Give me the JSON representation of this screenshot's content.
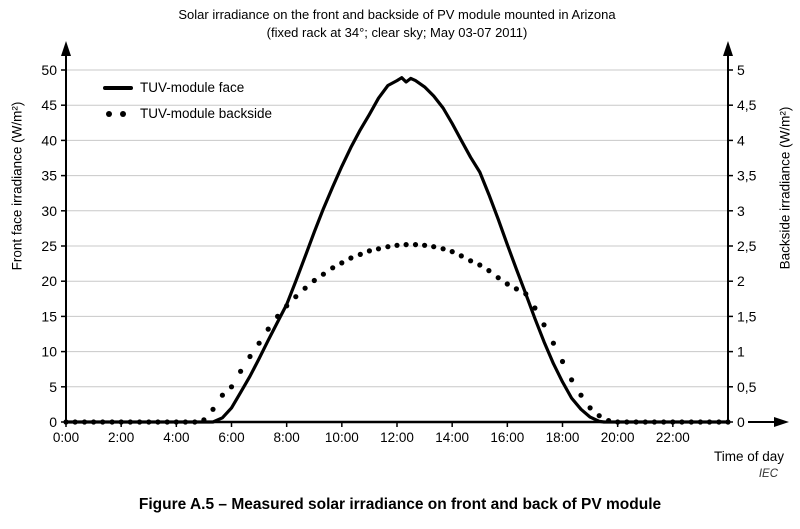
{
  "title": "Solar irradiance on the front and backside of PV module mounted in Arizona",
  "subtitle": "(fixed rack at 34°; clear sky; May 03-07 2011)",
  "caption": "Figure A.5 – Measured solar irradiance on front and back of PV module",
  "source_label": "IEC",
  "chart_data": {
    "type": "line",
    "title": "Solar irradiance on the front and backside of PV module mounted in Arizona",
    "subtitle": "(fixed rack at 34°; clear sky; May 03-07 2011)",
    "xlabel": "Time of day",
    "ylabel_left": "Front face irradiance (W/m²)",
    "ylabel_right": "Backside irradiance (W/m²)",
    "xlim": [
      0,
      24
    ],
    "ylim_left": [
      0,
      50
    ],
    "ylim_right": [
      0,
      5
    ],
    "grid": "horizontal",
    "legend_position": "top-left-inside",
    "colors": {
      "line": "#000000",
      "grid": "#c8c8c8",
      "text": "#000000"
    },
    "x_ticks": [
      "0:00",
      "2:00",
      "4:00",
      "6:00",
      "8:00",
      "10:00",
      "12:00",
      "14:00",
      "16:00",
      "18:00",
      "20:00",
      "22:00"
    ],
    "x_tick_hours": [
      0,
      2,
      4,
      6,
      8,
      10,
      12,
      14,
      16,
      18,
      20,
      22
    ],
    "y_left_ticks": [
      0,
      5,
      10,
      15,
      20,
      25,
      30,
      35,
      40,
      45,
      50
    ],
    "y_right_ticks": [
      "0",
      "0,5",
      "1",
      "1,5",
      "2",
      "2,5",
      "3",
      "3,5",
      "4",
      "4,5",
      "5"
    ],
    "series": [
      {
        "name": "TUV-module face",
        "style": "solid",
        "axis": "left",
        "x": [
          0,
          1,
          2,
          3,
          4,
          5,
          5.33,
          5.67,
          6,
          6.33,
          6.67,
          7,
          7.33,
          7.67,
          8,
          8.33,
          8.67,
          9,
          9.33,
          9.67,
          10,
          10.33,
          10.67,
          11,
          11.33,
          11.67,
          12,
          12.17,
          12.33,
          12.5,
          12.67,
          13,
          13.33,
          13.67,
          14,
          14.33,
          14.67,
          15,
          15.33,
          15.67,
          16,
          16.33,
          16.67,
          17,
          17.33,
          17.67,
          18,
          18.33,
          18.67,
          19,
          19.33,
          19.5,
          20,
          21,
          22,
          23,
          24
        ],
        "y": [
          0,
          0,
          0,
          0,
          0,
          0,
          0,
          0.6,
          2,
          4.2,
          6.5,
          9,
          11.6,
          14.2,
          16.7,
          20,
          23.5,
          27,
          30.3,
          33.4,
          36.3,
          39,
          41.5,
          43.7,
          46,
          47.8,
          48.5,
          48.9,
          48.3,
          48.8,
          48.5,
          47.6,
          46.3,
          44.6,
          42.4,
          40,
          37.6,
          35.5,
          32.3,
          28.8,
          25.2,
          21.7,
          18.2,
          14.7,
          11.4,
          8.3,
          5.7,
          3.4,
          1.8,
          0.7,
          0.1,
          0,
          0,
          0,
          0,
          0,
          0
        ]
      },
      {
        "name": "TUV-module backside",
        "style": "dotted",
        "axis": "right",
        "x": [
          0,
          0.33,
          0.67,
          1,
          1.33,
          1.67,
          2,
          2.33,
          2.67,
          3,
          3.33,
          3.67,
          4,
          4.33,
          4.67,
          5,
          5.33,
          5.67,
          6,
          6.33,
          6.67,
          7,
          7.33,
          7.67,
          8,
          8.33,
          8.67,
          9,
          9.33,
          9.67,
          10,
          10.33,
          10.67,
          11,
          11.33,
          11.67,
          12,
          12.33,
          12.67,
          13,
          13.33,
          13.67,
          14,
          14.33,
          14.67,
          15,
          15.33,
          15.67,
          16,
          16.33,
          16.67,
          17,
          17.33,
          17.67,
          18,
          18.33,
          18.67,
          19,
          19.33,
          19.67,
          20,
          20.33,
          20.67,
          21,
          21.33,
          21.67,
          22,
          22.33,
          22.67,
          23,
          23.33,
          23.67,
          24
        ],
        "y": [
          0,
          0,
          0,
          0,
          0,
          0,
          0,
          0,
          0,
          0,
          0,
          0,
          0,
          0,
          0,
          0.03,
          0.18,
          0.38,
          0.5,
          0.72,
          0.93,
          1.12,
          1.32,
          1.5,
          1.65,
          1.78,
          1.9,
          2.01,
          2.1,
          2.19,
          2.26,
          2.33,
          2.38,
          2.43,
          2.46,
          2.49,
          2.51,
          2.52,
          2.52,
          2.51,
          2.49,
          2.46,
          2.42,
          2.36,
          2.29,
          2.23,
          2.15,
          2.05,
          1.96,
          1.89,
          1.82,
          1.62,
          1.38,
          1.12,
          0.86,
          0.6,
          0.38,
          0.2,
          0.09,
          0.02,
          0,
          0,
          0,
          0,
          0,
          0,
          0,
          0,
          0,
          0,
          0,
          0,
          0
        ]
      }
    ]
  }
}
